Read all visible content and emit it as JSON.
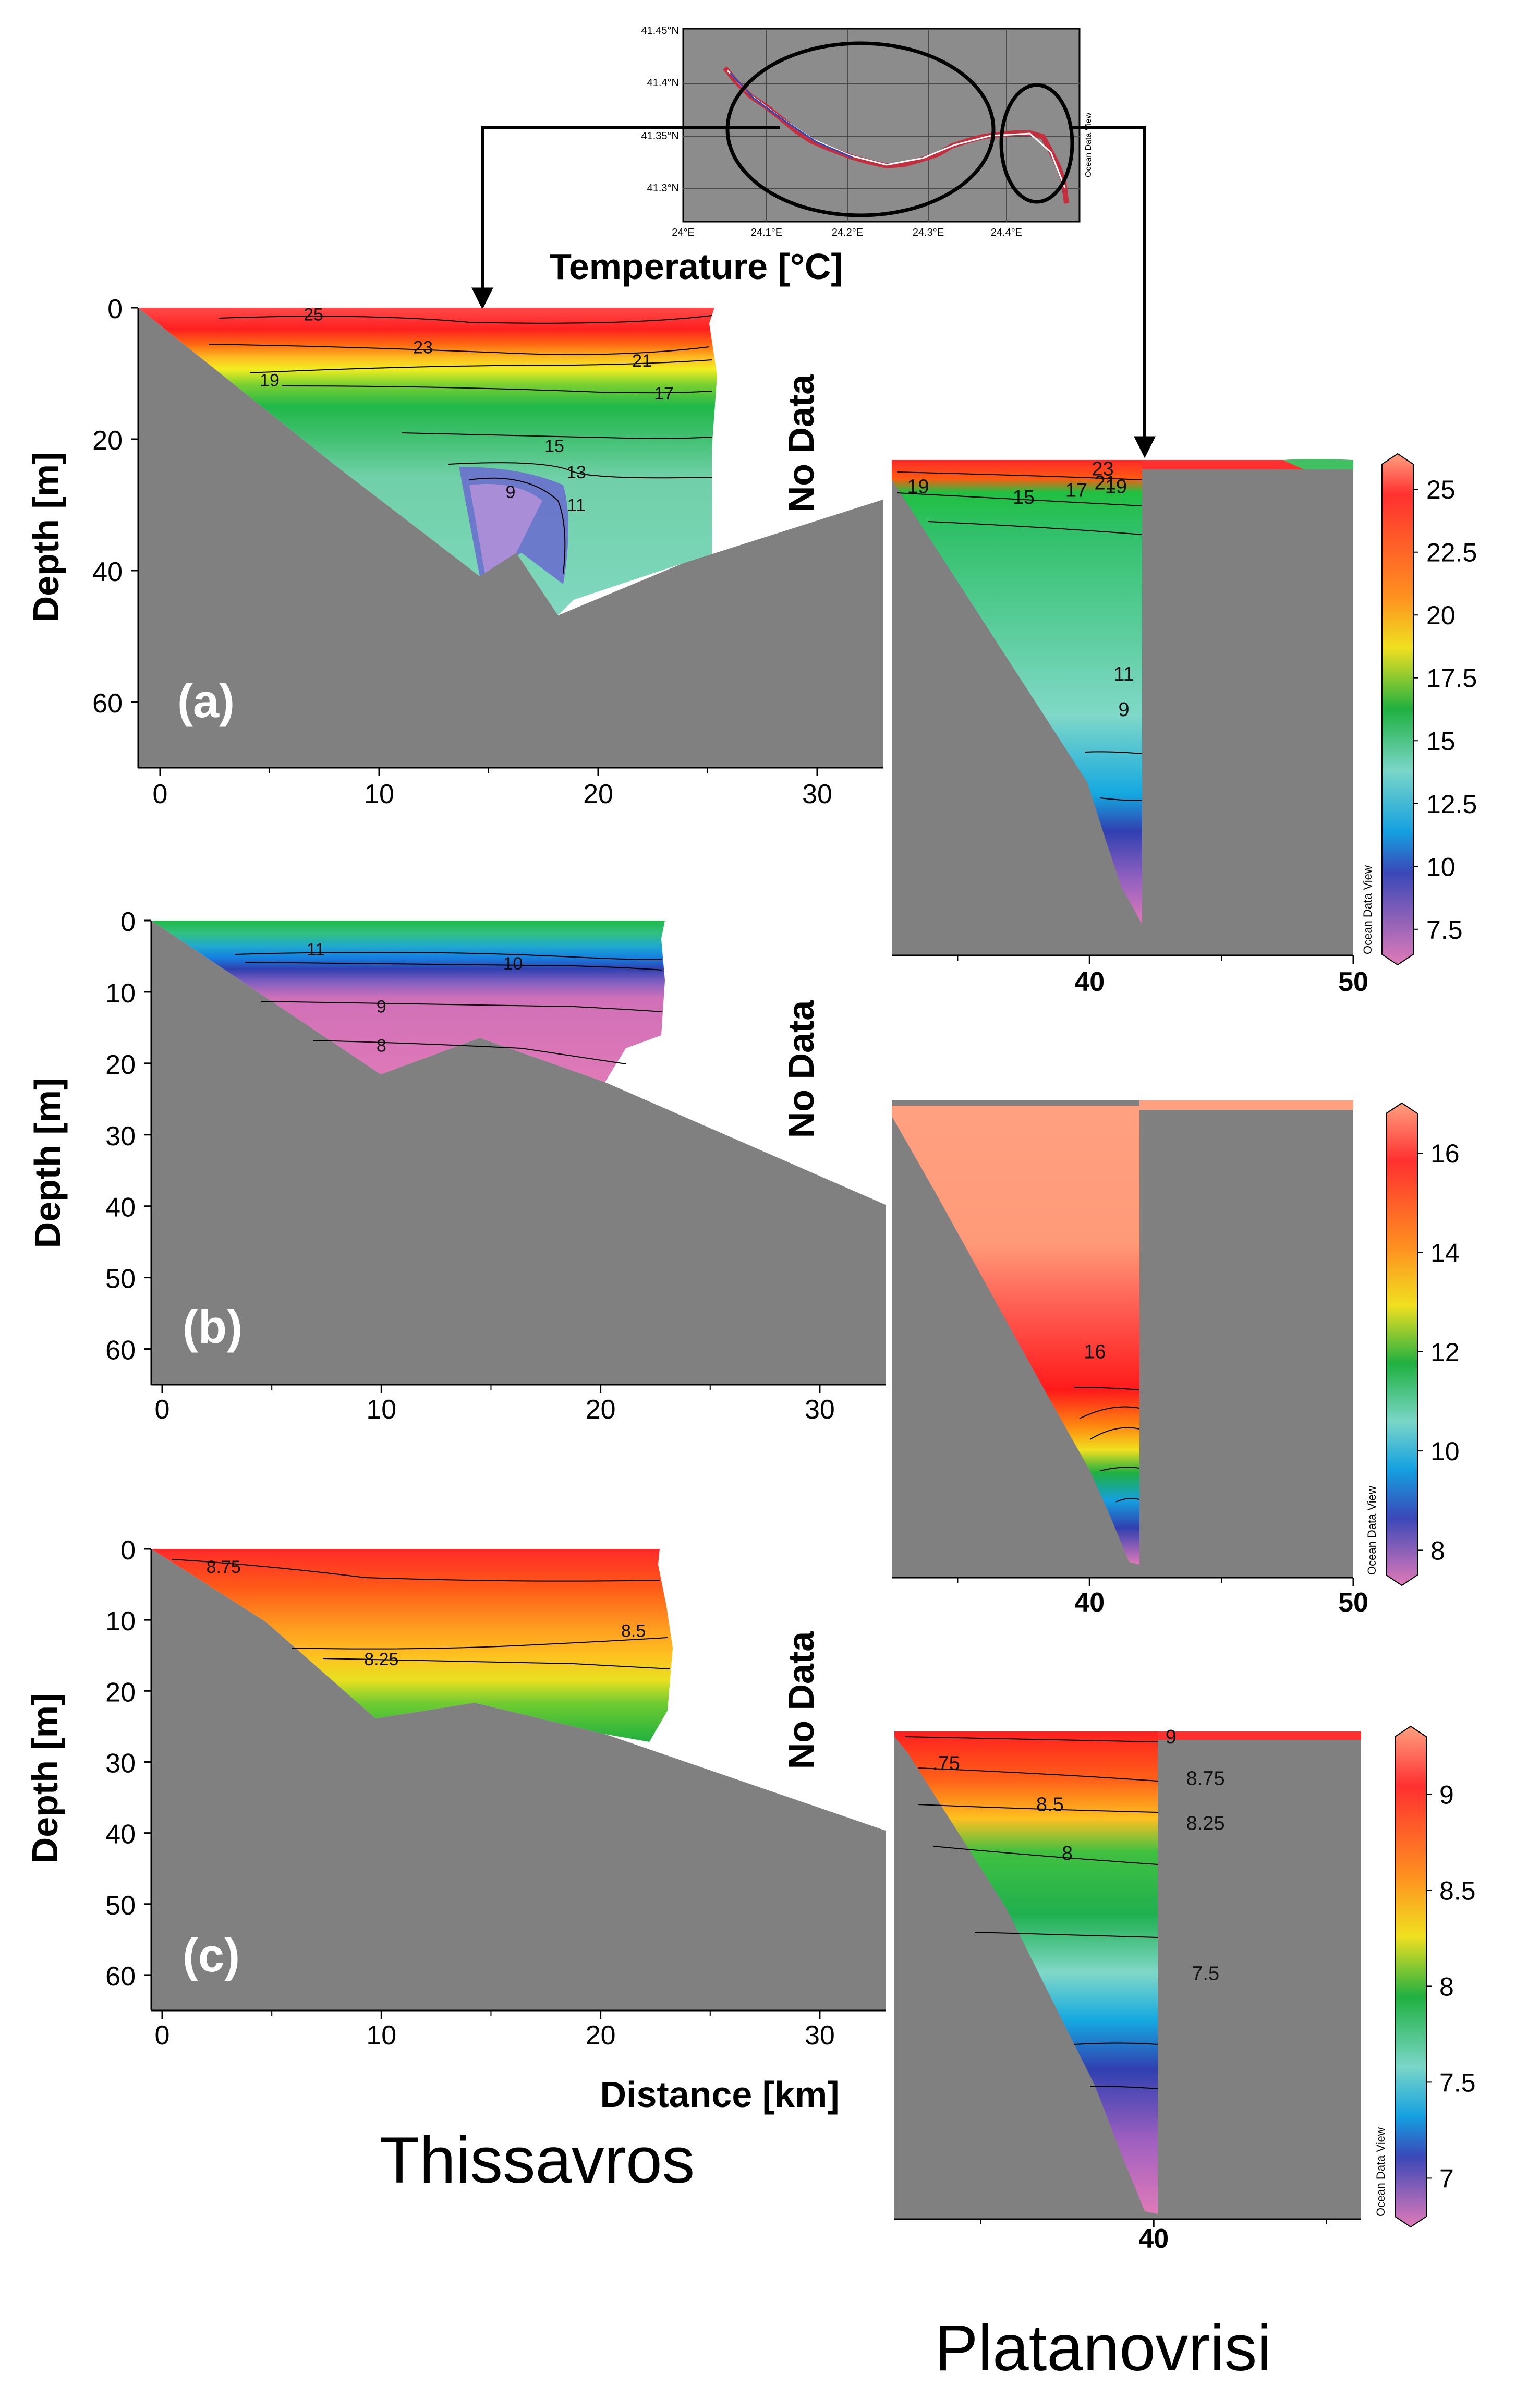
{
  "figure": {
    "map_title": "Temperature [°C]",
    "map": {
      "lat_labels": [
        "41.45°N",
        "41.4°N",
        "41.35°N",
        "41.3°N"
      ],
      "lon_labels": [
        "24°E",
        "24.1°E",
        "24.2°E",
        "24.3°E",
        "24.4°E"
      ],
      "credit": "Ocean Data View"
    },
    "left_reservoir_name": "Thissavros",
    "right_reservoir_name": "Platanovrisi",
    "no_data_label": "No Data",
    "credit": "Ocean Data View"
  },
  "colors": {
    "land": "#808080",
    "nodata": "#ffffff",
    "ramp": [
      "#e07ab8",
      "#3a48b8",
      "#14a0e0",
      "#7ad6c8",
      "#20b040",
      "#f0e020",
      "#ff9020",
      "#ff3030",
      "#ff0000",
      "#ffa080"
    ]
  },
  "chart_data": [
    {
      "type": "heatmap",
      "panel": "(a)",
      "reservoir": "Thissavros",
      "variable": "Temperature [°C]",
      "xlabel": "",
      "ylabel": "Depth [m]",
      "xlim": [
        -1,
        33
      ],
      "ylim": [
        70,
        0
      ],
      "xticks": [
        "0",
        "10",
        "20",
        "30"
      ],
      "yticks": [
        "0",
        "20",
        "40",
        "60"
      ],
      "ytick_values": [
        0,
        20,
        40,
        60
      ],
      "bottom_profile": {
        "distance_km": [
          0,
          5,
          10,
          15,
          16,
          17,
          18.5,
          25,
          33
        ],
        "depth_m": [
          0,
          10,
          20,
          36,
          28,
          38,
          48,
          40,
          30
        ]
      },
      "data_extent_km": 25.5,
      "contours": [
        {
          "label": "25",
          "depth_m": 1,
          "x_km": 7
        },
        {
          "label": "23",
          "depth_m": 6,
          "x_km": 12
        },
        {
          "label": "21",
          "depth_m": 8,
          "x_km": 22
        },
        {
          "label": "19",
          "depth_m": 11,
          "x_km": 5
        },
        {
          "label": "17",
          "depth_m": 13,
          "x_km": 23
        },
        {
          "label": "15",
          "depth_m": 21,
          "x_km": 18
        },
        {
          "label": "13",
          "depth_m": 25,
          "x_km": 19
        },
        {
          "label": "11",
          "depth_m": 30,
          "x_km": 19
        },
        {
          "label": "9",
          "depth_m": 28,
          "x_km": 16
        }
      ]
    },
    {
      "type": "heatmap",
      "panel": "(a)",
      "reservoir": "Platanovrisi",
      "variable": "Temperature [°C]",
      "xlim": [
        32.5,
        50
      ],
      "xticks": [
        "40",
        "50"
      ],
      "colorbar": {
        "min": 6.5,
        "max": 26,
        "ticks": [
          "25",
          "22.5",
          "20",
          "17.5",
          "15",
          "12.5",
          "10",
          "7.5"
        ],
        "tick_values": [
          25,
          22.5,
          20,
          17.5,
          15,
          12.5,
          10,
          7.5
        ]
      },
      "contours": [
        {
          "label": "23",
          "x_km": 40.5,
          "depth_m": 1
        },
        {
          "label": "21",
          "x_km": 40.6,
          "depth_m": 3
        },
        {
          "label": "19",
          "x_km": 33.5,
          "depth_m": 3.5
        },
        {
          "label": "19",
          "x_km": 41,
          "depth_m": 3.5
        },
        {
          "label": "17",
          "x_km": 39.5,
          "depth_m": 4
        },
        {
          "label": "15",
          "x_km": 37.5,
          "depth_m": 5
        },
        {
          "label": "11",
          "x_km": 41.3,
          "depth_m": 30
        },
        {
          "label": "9",
          "x_km": 41.3,
          "depth_m": 35
        }
      ]
    },
    {
      "type": "heatmap",
      "panel": "(b)",
      "reservoir": "Thissavros",
      "xlabel": "",
      "ylabel": "Depth [m]",
      "xlim": [
        -0.5,
        33
      ],
      "ylim": [
        65,
        0
      ],
      "xticks": [
        "0",
        "10",
        "20",
        "30"
      ],
      "yticks": [
        "0",
        "10",
        "20",
        "30",
        "40",
        "50",
        "60"
      ],
      "ytick_values": [
        0,
        10,
        20,
        30,
        40,
        50,
        60
      ],
      "bottom_profile": {
        "distance_km": [
          0,
          5,
          10,
          15,
          20,
          33
        ],
        "depth_m": [
          0,
          13,
          22,
          16,
          24,
          40
        ]
      },
      "data_extent_km": 22.5,
      "contours": [
        {
          "label": "11",
          "depth_m": 4,
          "x_km": 7
        },
        {
          "label": "10",
          "depth_m": 6,
          "x_km": 16
        },
        {
          "label": "9",
          "depth_m": 12,
          "x_km": 10
        },
        {
          "label": "8",
          "depth_m": 17.5,
          "x_km": 10
        }
      ]
    },
    {
      "type": "heatmap",
      "panel": "(b)",
      "reservoir": "Platanovrisi",
      "xlim": [
        32.5,
        50
      ],
      "xticks": [
        "40",
        "50"
      ],
      "colorbar": {
        "min": 7.5,
        "max": 16.8,
        "ticks": [
          "16",
          "14",
          "12",
          "10",
          "8"
        ],
        "tick_values": [
          16,
          14,
          12,
          10,
          8
        ]
      },
      "contours": [
        {
          "label": "16",
          "x_km": 40.2,
          "depth_m": 34
        }
      ]
    },
    {
      "type": "heatmap",
      "panel": "(c)",
      "reservoir": "Thissavros",
      "xlabel": "Distance [km]",
      "ylabel": "Depth [m]",
      "xlim": [
        -0.5,
        33
      ],
      "ylim": [
        65,
        0
      ],
      "xticks": [
        "0",
        "10",
        "20",
        "30"
      ],
      "yticks": [
        "0",
        "10",
        "20",
        "30",
        "40",
        "50",
        "60"
      ],
      "ytick_values": [
        0,
        10,
        20,
        30,
        40,
        50,
        60
      ],
      "bottom_profile": {
        "distance_km": [
          0,
          4.5,
          10,
          14.5,
          20,
          32.5
        ],
        "depth_m": [
          0,
          6,
          22,
          20,
          26,
          40
        ]
      },
      "data_extent_km": 22.5,
      "contours": [
        {
          "label": "8.75",
          "depth_m": 2.5,
          "x_km": 2.8
        },
        {
          "label": "8.5",
          "depth_m": 11.5,
          "x_km": 21.5
        },
        {
          "label": "8.25",
          "depth_m": 15.5,
          "x_km": 10
        }
      ]
    },
    {
      "type": "heatmap",
      "panel": "(c)",
      "reservoir": "Platanovrisi",
      "xlim": [
        32.5,
        46
      ],
      "xticks": [
        "40"
      ],
      "colorbar": {
        "min": 6.8,
        "max": 9.3,
        "ticks": [
          "9",
          "8.5",
          "8",
          "7.5",
          "7"
        ],
        "tick_values": [
          9,
          8.5,
          8,
          7.5,
          7
        ]
      },
      "contours": [
        {
          "label": "9",
          "x_km": 40.5,
          "depth_m": 0.5
        },
        {
          "label": ".75",
          "x_km": 34,
          "depth_m": 4
        },
        {
          "label": "8.75",
          "x_km": 41.5,
          "depth_m": 6
        },
        {
          "label": "8.5",
          "x_km": 37,
          "depth_m": 9.5
        },
        {
          "label": "8.25",
          "x_km": 41.5,
          "depth_m": 12
        },
        {
          "label": "8",
          "x_km": 37.5,
          "depth_m": 16
        },
        {
          "label": "7.5",
          "x_km": 41.5,
          "depth_m": 32
        }
      ]
    }
  ]
}
